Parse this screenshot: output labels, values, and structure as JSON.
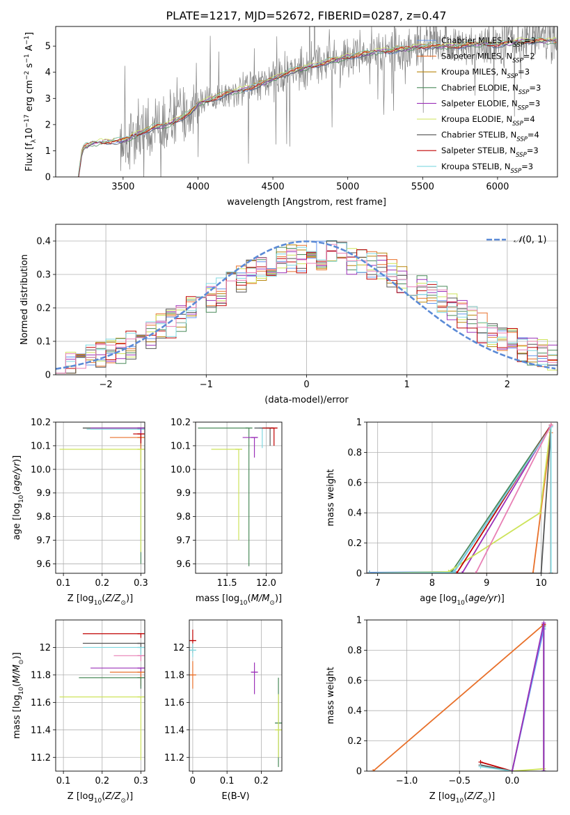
{
  "title": "PLATE=1217, MJD=52672, FIBERID=0287, z=0.47",
  "colors": {
    "Chabrier MILES": "#6495ed",
    "Salpeter MILES": "#e8702a",
    "Kroupa MILES": "#b8860b",
    "Chabrier ELODIE": "#4a8a5a",
    "Salpeter ELODIE": "#9b30b8",
    "Kroupa ELODIE": "#cde35a",
    "Chabrier STELIB": "#555555",
    "Salpeter STELIB": "#c00000",
    "Kroupa STELIB": "#7fd8e0",
    "pink": "#e87fb4",
    "data": "#808080",
    "gaussian": "#5b8ad6",
    "grid": "#b0b0b0"
  },
  "chart_data": [
    {
      "type": "line",
      "xlabel": "wavelength [Angstrom, rest frame]",
      "ylabel": "Flux [f_λ 10^-17 erg cm^-2 s^-1 A^-1]",
      "xlim": [
        3050,
        6400
      ],
      "ylim": [
        0,
        5.75
      ],
      "xticks": [
        3500,
        4000,
        4500,
        5000,
        5500,
        6000
      ],
      "yticks": [
        0,
        1,
        2,
        3,
        4,
        5
      ],
      "grid": false,
      "legend_position": "upper right",
      "legend": [
        "Chabrier MILES, N_SSP=3",
        "Salpeter MILES, N_SSP=2",
        "Kroupa MILES, N_SSP=3",
        "Chabrier ELODIE, N_SSP=3",
        "Salpeter ELODIE, N_SSP=3",
        "Kroupa ELODIE, N_SSP=4",
        "Chabrier STELIB, N_SSP=4",
        "Salpeter STELIB, N_SSP=3",
        "Kroupa STELIB, N_SSP=3"
      ],
      "model_continuum": {
        "x": [
          3200,
          3230,
          3300,
          3400,
          3500,
          3600,
          3700,
          3800,
          3900,
          3950,
          4000,
          4100,
          4200,
          4300,
          4400,
          4500,
          4600,
          4700,
          4800,
          4900,
          5000,
          5100,
          5200,
          5300,
          5400,
          5500,
          5600,
          5700,
          5800,
          5900,
          6000,
          6100,
          6200
        ],
        "y": [
          0,
          1.1,
          1.3,
          1.35,
          1.4,
          1.65,
          1.9,
          2.0,
          2.3,
          2.45,
          2.8,
          3.0,
          3.2,
          3.35,
          3.5,
          3.75,
          4.0,
          4.15,
          4.3,
          4.45,
          4.6,
          4.7,
          4.8,
          4.85,
          4.9,
          5.0,
          5.0,
          5.0,
          5.05,
          5.1,
          5.05,
          5.15,
          5.2
        ]
      },
      "series_label": "data",
      "series_color": "gray"
    },
    {
      "type": "step",
      "xlabel": "(data-model)/error",
      "ylabel": "Normed distribution",
      "xlim": [
        -2.5,
        2.5
      ],
      "ylim": [
        0,
        0.45
      ],
      "xticks": [
        -2,
        -1,
        0,
        1,
        2
      ],
      "yticks": [
        0.0,
        0.1,
        0.2,
        0.3,
        0.4
      ],
      "grid": true,
      "legend": [
        "N(0,1)"
      ],
      "legend_position": "upper right",
      "histogram_envelope": {
        "x": [
          -2.5,
          -2.25,
          -2.0,
          -1.75,
          -1.5,
          -1.25,
          -1.0,
          -0.75,
          -0.5,
          -0.25,
          0.0,
          0.25,
          0.5,
          0.75,
          1.0,
          1.25,
          1.5,
          1.75,
          2.0,
          2.25,
          2.5
        ],
        "y": [
          0.02,
          0.035,
          0.06,
          0.09,
          0.13,
          0.17,
          0.22,
          0.27,
          0.31,
          0.34,
          0.35,
          0.36,
          0.34,
          0.32,
          0.28,
          0.24,
          0.19,
          0.14,
          0.1,
          0.07,
          0.05
        ]
      }
    },
    {
      "type": "errorbar",
      "xlabel": "Z [log10(Z/Z⊙)]",
      "ylabel": "age  [log10(age/yr)]",
      "xlim": [
        0.08,
        0.31
      ],
      "ylim": [
        9.56,
        10.2
      ],
      "xticks": [
        0.1,
        0.2,
        0.3
      ],
      "yticks": [
        9.6,
        9.7,
        9.8,
        9.9,
        10.0,
        10.1,
        10.2
      ],
      "ytick_labels": [
        "9.6",
        "9.7",
        "9.8",
        "9.9",
        "10.0",
        "10.1",
        "10.2"
      ],
      "grid": true,
      "points": [
        {
          "x": 0.3,
          "y": 10.175,
          "x_lo": 0.15,
          "y_lo": 9.6,
          "series": "Chabrier ELODIE"
        },
        {
          "x": 0.3,
          "y": 10.175,
          "x_lo": 0.15,
          "y_lo": 10.1,
          "series": "Chabrier STELIB"
        },
        {
          "x": 0.3,
          "y": 10.17,
          "x_lo": 0.16,
          "y_lo": 10.13,
          "series": "Kroupa STELIB"
        },
        {
          "x": 0.3,
          "y": 10.175,
          "x_lo": 0.17,
          "y_lo": 10.11,
          "series": "Salpeter ELODIE"
        },
        {
          "x": 0.3,
          "y": 10.135,
          "x_lo": 0.22,
          "y_lo": 10.03,
          "series": "Salpeter MILES"
        },
        {
          "x": 0.3,
          "y": 10.15,
          "x_lo": 0.28,
          "y_lo": 10.11,
          "series": "Salpeter STELIB"
        },
        {
          "x": 0.3,
          "y": 10.085,
          "x_lo": 0.09,
          "y_lo": 9.65,
          "series": "Kroupa ELODIE"
        }
      ]
    },
    {
      "type": "errorbar",
      "xlabel": "mass [log10(M/M⊙)]",
      "ylabel": "",
      "xlim": [
        11.1,
        12.2
      ],
      "ylim": [
        9.56,
        10.2
      ],
      "xticks": [
        11.5,
        12.0
      ],
      "xtick_labels": [
        "11.5",
        "12.0"
      ],
      "yticks": [
        9.6,
        9.7,
        9.8,
        9.9,
        10.0,
        10.1,
        10.2
      ],
      "ytick_labels": [
        "9.6",
        "9.7",
        "9.8",
        "9.9",
        "10.0",
        "10.1",
        "10.2"
      ],
      "grid": true,
      "points": [
        {
          "x": 11.78,
          "y": 10.175,
          "x_lo": 11.13,
          "y_lo": 9.59,
          "series": "Chabrier ELODIE"
        },
        {
          "x": 11.65,
          "y": 10.085,
          "x_lo": 11.3,
          "y_lo": 9.7,
          "series": "Kroupa ELODIE"
        },
        {
          "x": 11.85,
          "y": 10.135,
          "x_lo": 11.7,
          "y_lo": 10.05,
          "series": "Salpeter ELODIE"
        },
        {
          "x": 11.95,
          "y": 10.175,
          "x_lo": 11.85,
          "y_lo": 10.09,
          "series": "Kroupa STELIB"
        },
        {
          "x": 12.05,
          "y": 10.175,
          "x_lo": 11.85,
          "y_lo": 10.1,
          "series": "Chabrier STELIB"
        },
        {
          "x": 12.1,
          "y": 10.175,
          "x_lo": 11.95,
          "y_lo": 10.1,
          "series": "Salpeter STELIB"
        }
      ]
    },
    {
      "type": "line",
      "xlabel": "age  [log10(age/yr)]",
      "ylabel": "mass weight",
      "xlim": [
        6.8,
        10.3
      ],
      "ylim": [
        0,
        1.0
      ],
      "xticks": [
        7,
        8,
        9,
        10
      ],
      "yticks": [
        0.0,
        0.2,
        0.4,
        0.6,
        0.8,
        1.0
      ],
      "grid": true,
      "series": [
        {
          "name": "Chabrier MILES",
          "x": [
            6.85,
            8.4,
            10.18,
            10.18
          ],
          "y": [
            0.005,
            0.01,
            0.97,
            0.0
          ]
        },
        {
          "name": "Salpeter MILES",
          "x": [
            6.85,
            9.85,
            10.18,
            10.18
          ],
          "y": [
            0.0,
            0.0,
            0.93,
            0.0
          ]
        },
        {
          "name": "Chabrier ELODIE",
          "x": [
            6.85,
            8.35,
            10.18,
            10.18
          ],
          "y": [
            0.0,
            0.005,
            0.98,
            0.0
          ]
        },
        {
          "name": "Salpeter ELODIE",
          "x": [
            6.85,
            8.55,
            10.18,
            10.18
          ],
          "y": [
            0.0,
            0.0,
            0.98,
            0.0
          ]
        },
        {
          "name": "Kroupa ELODIE",
          "x": [
            6.85,
            8.3,
            9.98,
            10.18,
            10.18
          ],
          "y": [
            0.0,
            0.01,
            0.4,
            0.98,
            0.0
          ]
        },
        {
          "name": "Chabrier STELIB",
          "x": [
            6.85,
            10.0,
            10.18,
            10.18
          ],
          "y": [
            0.0,
            0.0,
            0.97,
            0.0
          ]
        },
        {
          "name": "Salpeter STELIB",
          "x": [
            6.85,
            8.45,
            10.18,
            10.18
          ],
          "y": [
            0.0,
            0.0,
            0.98,
            0.0
          ]
        },
        {
          "name": "Kroupa STELIB",
          "x": [
            6.85,
            8.4,
            10.18,
            10.18
          ],
          "y": [
            0.0,
            0.005,
            0.97,
            0.0
          ]
        },
        {
          "name": "pink",
          "x": [
            8.8,
            10.18
          ],
          "y": [
            0.0,
            0.98
          ]
        }
      ]
    },
    {
      "type": "errorbar",
      "xlabel": "Z [log10(Z/Z⊙)]",
      "ylabel": "mass [log10(M/M⊙)]",
      "xlim": [
        0.08,
        0.31
      ],
      "ylim": [
        11.1,
        12.2
      ],
      "xticks": [
        0.1,
        0.2,
        0.3
      ],
      "yticks": [
        11.2,
        11.4,
        11.6,
        11.8,
        12.0
      ],
      "grid": true,
      "points": [
        {
          "x": 0.3,
          "y": 12.1,
          "x_lo": 0.15,
          "y_lo": 12.07,
          "series": "Salpeter STELIB"
        },
        {
          "x": 0.3,
          "y": 12.03,
          "x_lo": 0.15,
          "y_lo": 11.95,
          "series": "Chabrier STELIB"
        },
        {
          "x": 0.3,
          "y": 12.0,
          "x_lo": 0.15,
          "y_lo": 11.93,
          "series": "Kroupa STELIB"
        },
        {
          "x": 0.3,
          "y": 11.94,
          "x_lo": 0.23,
          "y_lo": 11.9,
          "series": "pink"
        },
        {
          "x": 0.3,
          "y": 11.85,
          "x_lo": 0.17,
          "y_lo": 11.7,
          "series": "Salpeter ELODIE"
        },
        {
          "x": 0.3,
          "y": 11.82,
          "x_lo": 0.22,
          "y_lo": 11.72,
          "series": "Salpeter MILES"
        },
        {
          "x": 0.3,
          "y": 11.78,
          "x_lo": 0.14,
          "y_lo": 11.7,
          "series": "Chabrier ELODIE"
        },
        {
          "x": 0.3,
          "y": 11.64,
          "x_lo": 0.09,
          "y_lo": 11.18,
          "series": "Kroupa ELODIE"
        }
      ]
    },
    {
      "type": "errorbar",
      "xlabel": "E(B-V)",
      "ylabel": "",
      "xlim": [
        -0.01,
        0.26
      ],
      "ylim": [
        11.1,
        12.2
      ],
      "xticks": [
        0.0,
        0.1,
        0.2
      ],
      "yticks": [
        11.2,
        11.4,
        11.6,
        11.8,
        12.0
      ],
      "grid": true,
      "points": [
        {
          "x": 0.0,
          "y": 12.05,
          "y_lo": 11.96,
          "y_hi": 12.13,
          "series": "Salpeter STELIB"
        },
        {
          "x": 0.0,
          "y": 11.98,
          "y_lo": 11.93,
          "y_hi": 12.03,
          "series": "Kroupa STELIB"
        },
        {
          "x": 0.0,
          "y": 11.8,
          "y_lo": 11.7,
          "y_hi": 11.9,
          "series": "Salpeter MILES"
        },
        {
          "x": 0.18,
          "y": 11.82,
          "y_lo": 11.66,
          "y_hi": 11.89,
          "series": "Salpeter ELODIE"
        },
        {
          "x": 0.25,
          "y": 11.45,
          "y_lo": 11.13,
          "y_hi": 11.78,
          "series": "Chabrier ELODIE"
        },
        {
          "x": 0.25,
          "y": 11.4,
          "y_lo": 11.2,
          "y_hi": 11.66,
          "series": "Kroupa ELODIE"
        }
      ]
    },
    {
      "type": "line",
      "xlabel": "Z [log10(Z/Z⊙)]",
      "ylabel": "mass weight",
      "xlim": [
        -1.38,
        0.43
      ],
      "ylim": [
        0,
        1.0
      ],
      "xticks": [
        -1.0,
        -0.5,
        0.0
      ],
      "xtick_labels": [
        "−1.0",
        "−0.5",
        "0.0"
      ],
      "yticks": [
        0.0,
        0.2,
        0.4,
        0.6,
        0.8,
        1.0
      ],
      "grid": true,
      "series": [
        {
          "name": "Salpeter MILES",
          "x": [
            -1.32,
            0.3,
            0.3
          ],
          "y": [
            0.0,
            0.97,
            0.0
          ]
        },
        {
          "name": "Salpeter STELIB",
          "x": [
            -0.3,
            0.0,
            0.3,
            0.3
          ],
          "y": [
            0.06,
            0.0,
            0.97,
            0.0
          ]
        },
        {
          "name": "Chabrier STELIB",
          "x": [
            -0.3,
            0.0,
            0.3,
            0.3
          ],
          "y": [
            0.04,
            0.0,
            0.96,
            0.0
          ]
        },
        {
          "name": "Kroupa STELIB",
          "x": [
            -0.3,
            0.0,
            0.3,
            0.3
          ],
          "y": [
            0.03,
            0.0,
            0.95,
            0.0
          ]
        },
        {
          "name": "Chabrier MILES",
          "x": [
            0.0,
            0.3,
            0.3
          ],
          "y": [
            0.0,
            0.94,
            0.0
          ]
        },
        {
          "name": "Kroupa ELODIE",
          "x": [
            0.0,
            0.3
          ],
          "y": [
            0.0,
            0.015
          ]
        },
        {
          "name": "Salpeter ELODIE",
          "x": [
            0.0,
            0.3,
            0.3
          ],
          "y": [
            0.0,
            0.98,
            0.0
          ]
        }
      ]
    }
  ]
}
